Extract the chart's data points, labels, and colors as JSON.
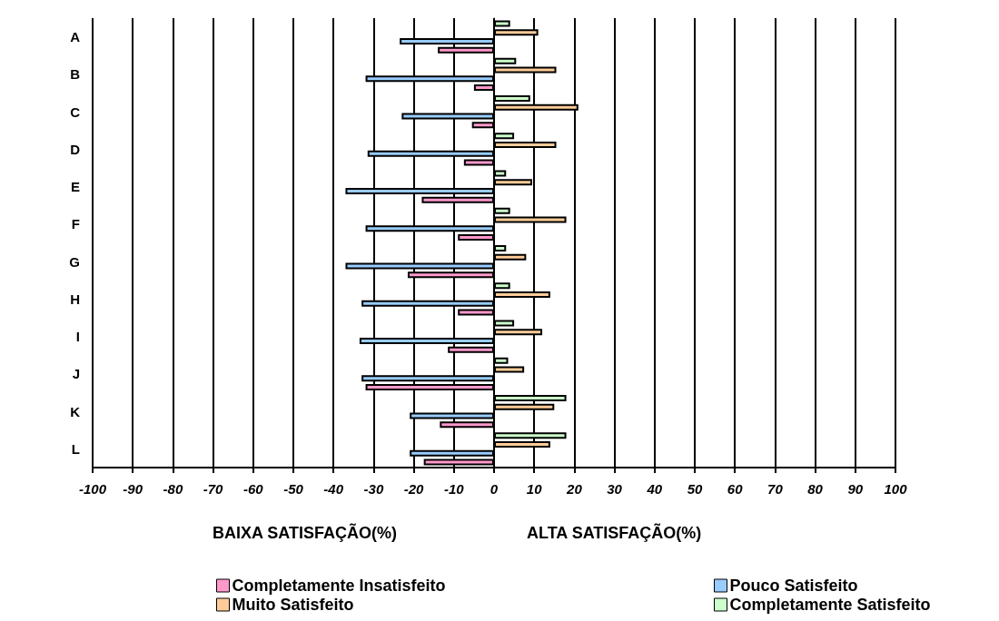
{
  "chart_data": {
    "type": "bar",
    "orientation": "horizontal",
    "categories": [
      "A",
      "B",
      "C",
      "D",
      "E",
      "F",
      "G",
      "H",
      "I",
      "J",
      "K",
      "L"
    ],
    "xlabel": "BAIXA SATISFAÇÃO(%)",
    "annotations": [
      "ALTA SATISFAÇÃO(%)"
    ],
    "series": [
      {
        "name": "Completamente Insatisfeito",
        "color": "#ff99cc",
        "values": [
          -14,
          -5,
          -5.5,
          -7.5,
          -18,
          -9,
          -21.5,
          -9,
          -11.5,
          -32,
          -13.5,
          -17.5
        ]
      },
      {
        "name": "Pouco Satisfeito",
        "color": "#99ccff",
        "values": [
          -23.5,
          -32,
          -23,
          -31.5,
          -37,
          -32,
          -37,
          -33,
          -33.5,
          -33,
          -21,
          -21
        ]
      },
      {
        "name": "Muito Satisfeito",
        "color": "#ffcc99",
        "values": [
          11,
          15.5,
          21,
          15.5,
          9.5,
          18,
          8,
          14,
          12,
          7.5,
          15,
          14
        ]
      },
      {
        "name": "Completamente Satisfeito",
        "color": "#ccffcc",
        "values": [
          4,
          5.5,
          9,
          5,
          3,
          4,
          3,
          4,
          5,
          3.5,
          18,
          18
        ]
      }
    ],
    "xlim": [
      -100,
      100
    ],
    "xticks": [
      -100,
      -90,
      -80,
      -70,
      -60,
      -50,
      -40,
      -30,
      -20,
      -10,
      0,
      10,
      20,
      30,
      40,
      50,
      60,
      70,
      80,
      90,
      100
    ],
    "grid": "x",
    "legend": "bottom"
  }
}
